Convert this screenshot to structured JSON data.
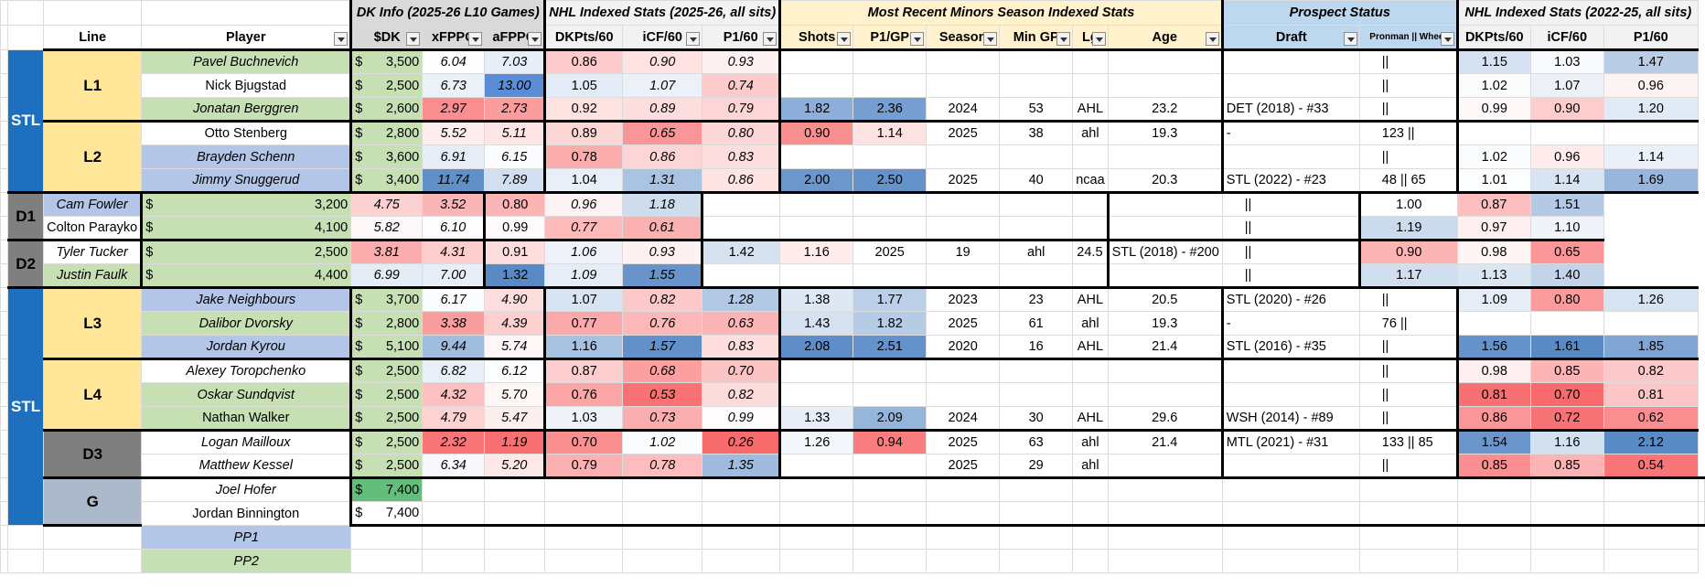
{
  "header": {
    "groups": {
      "dk": "DK Info (2025-26 L10 Games)",
      "nhl": "NHL Indexed Stats (2025-26, all sits)",
      "minors": "Most Recent Minors Season Indexed Stats",
      "prospect": "Prospect Status",
      "nhl2": "NHL Indexed Stats (2022-25, all sits)"
    },
    "columns": {
      "line": "Line",
      "player": "Player",
      "dk": "$DK",
      "xfppg": "xFPPG",
      "afppg": "aFPPG",
      "dkpts": "DKPts/60",
      "icf": "iCF/60",
      "p1": "P1/60",
      "shots": "Shots",
      "p1gp": "P1/GP",
      "season": "Season",
      "mingp": "Min GP",
      "lg": "Lg",
      "age": "Age",
      "draft": "Draft",
      "pronman": "Pronman || Wheel",
      "dkpts2": "DKPts/60",
      "icf2": "iCF/60",
      "p12": "P1/60"
    }
  },
  "team": "STL",
  "lines": {
    "L1": "L1",
    "L2": "L2",
    "D1": "D1",
    "D2": "D2",
    "L3": "L3",
    "L4": "L4",
    "D3": "D3",
    "G": "G"
  },
  "rows": [
    {
      "player": "Pavel Buchnevich",
      "dk": "3,500",
      "xfppg": "6.04",
      "afppg": "7.03",
      "dkpts": "0.86",
      "icf": "0.90",
      "p1": "0.93",
      "shots": "",
      "p1gp": "",
      "season": "",
      "mingp": "",
      "lg": "",
      "age": "",
      "draft": "",
      "pw": "||",
      "dkpts2": "1.15",
      "icf2": "1.03",
      "p12": "1.47"
    },
    {
      "player": "Nick Bjugstad",
      "dk": "2,500",
      "xfppg": "6.73",
      "afppg": "13.00",
      "dkpts": "1.05",
      "icf": "1.07",
      "p1": "0.74",
      "shots": "",
      "p1gp": "",
      "season": "",
      "mingp": "",
      "lg": "",
      "age": "",
      "draft": "",
      "pw": "||",
      "dkpts2": "1.02",
      "icf2": "1.07",
      "p12": "0.96"
    },
    {
      "player": "Jonatan Berggren",
      "dk": "2,600",
      "xfppg": "2.97",
      "afppg": "2.73",
      "dkpts": "0.92",
      "icf": "0.89",
      "p1": "0.79",
      "shots": "1.82",
      "p1gp": "2.36",
      "season": "2024",
      "mingp": "53",
      "lg": "AHL",
      "age": "23.2",
      "draft": "DET (2018) - #33",
      "pw": "||",
      "dkpts2": "0.99",
      "icf2": "0.90",
      "p12": "1.20"
    },
    {
      "player": "Otto Stenberg",
      "dk": "2,800",
      "xfppg": "5.52",
      "afppg": "5.11",
      "dkpts": "0.89",
      "icf": "0.65",
      "p1": "0.80",
      "shots": "0.90",
      "p1gp": "1.14",
      "season": "2025",
      "mingp": "38",
      "lg": "ahl",
      "age": "19.3",
      "draft": "-",
      "pw": "123 ||",
      "dkpts2": "",
      "icf2": "",
      "p12": ""
    },
    {
      "player": "Brayden Schenn",
      "dk": "3,600",
      "xfppg": "6.91",
      "afppg": "6.15",
      "dkpts": "0.78",
      "icf": "0.86",
      "p1": "0.83",
      "shots": "",
      "p1gp": "",
      "season": "",
      "mingp": "",
      "lg": "",
      "age": "",
      "draft": "",
      "pw": "||",
      "dkpts2": "1.02",
      "icf2": "0.96",
      "p12": "1.14"
    },
    {
      "player": "Jimmy Snuggerud",
      "dk": "3,400",
      "xfppg": "11.74",
      "afppg": "7.89",
      "dkpts": "1.04",
      "icf": "1.31",
      "p1": "0.86",
      "shots": "2.00",
      "p1gp": "2.50",
      "season": "2025",
      "mingp": "40",
      "lg": "ncaa",
      "age": "20.3",
      "draft": "STL (2022) - #23",
      "pw": "48 || 65",
      "dkpts2": "1.01",
      "icf2": "1.14",
      "p12": "1.69"
    },
    {
      "player": "Cam Fowler",
      "dk": "3,200",
      "xfppg": "4.75",
      "afppg": "3.52",
      "dkpts": "0.80",
      "icf": "0.96",
      "p1": "1.18",
      "shots": "",
      "p1gp": "",
      "season": "",
      "mingp": "",
      "lg": "",
      "age": "",
      "draft": "",
      "pw": "||",
      "dkpts2": "1.00",
      "icf2": "0.87",
      "p12": "1.51"
    },
    {
      "player": "Colton Parayko",
      "dk": "4,100",
      "xfppg": "5.82",
      "afppg": "6.10",
      "dkpts": "0.99",
      "icf": "0.77",
      "p1": "0.61",
      "shots": "",
      "p1gp": "",
      "season": "",
      "mingp": "",
      "lg": "",
      "age": "",
      "draft": "",
      "pw": "||",
      "dkpts2": "1.19",
      "icf2": "0.97",
      "p12": "1.10"
    },
    {
      "player": "Tyler Tucker",
      "dk": "2,500",
      "xfppg": "3.81",
      "afppg": "4.31",
      "dkpts": "0.91",
      "icf": "1.06",
      "p1": "0.93",
      "shots": "1.42",
      "p1gp": "1.16",
      "season": "2025",
      "mingp": "19",
      "lg": "ahl",
      "age": "24.5",
      "draft": "STL (2018) - #200",
      "pw": "||",
      "dkpts2": "0.90",
      "icf2": "0.98",
      "p12": "0.65"
    },
    {
      "player": "Justin Faulk",
      "dk": "4,400",
      "xfppg": "6.99",
      "afppg": "7.00",
      "dkpts": "1.32",
      "icf": "1.09",
      "p1": "1.55",
      "shots": "",
      "p1gp": "",
      "season": "",
      "mingp": "",
      "lg": "",
      "age": "",
      "draft": "",
      "pw": "||",
      "dkpts2": "1.17",
      "icf2": "1.13",
      "p12": "1.40"
    },
    {
      "player": "Jake Neighbours",
      "dk": "3,700",
      "xfppg": "6.17",
      "afppg": "4.90",
      "dkpts": "1.07",
      "icf": "0.82",
      "p1": "1.28",
      "shots": "1.38",
      "p1gp": "1.77",
      "season": "2023",
      "mingp": "23",
      "lg": "AHL",
      "age": "20.5",
      "draft": "STL (2020) - #26",
      "pw": "||",
      "dkpts2": "1.09",
      "icf2": "0.80",
      "p12": "1.26"
    },
    {
      "player": "Dalibor Dvorsky",
      "dk": "2,800",
      "xfppg": "3.38",
      "afppg": "4.39",
      "dkpts": "0.77",
      "icf": "0.76",
      "p1": "0.63",
      "shots": "1.43",
      "p1gp": "1.82",
      "season": "2025",
      "mingp": "61",
      "lg": "ahl",
      "age": "19.3",
      "draft": "-",
      "pw": "76 ||",
      "dkpts2": "",
      "icf2": "",
      "p12": ""
    },
    {
      "player": "Jordan Kyrou",
      "dk": "5,100",
      "xfppg": "9.44",
      "afppg": "5.74",
      "dkpts": "1.16",
      "icf": "1.57",
      "p1": "0.83",
      "shots": "2.08",
      "p1gp": "2.51",
      "season": "2020",
      "mingp": "16",
      "lg": "AHL",
      "age": "21.4",
      "draft": "STL (2016) - #35",
      "pw": "||",
      "dkpts2": "1.56",
      "icf2": "1.61",
      "p12": "1.85"
    },
    {
      "player": "Alexey Toropchenko",
      "dk": "2,500",
      "xfppg": "6.82",
      "afppg": "6.12",
      "dkpts": "0.87",
      "icf": "0.68",
      "p1": "0.70",
      "shots": "",
      "p1gp": "",
      "season": "",
      "mingp": "",
      "lg": "",
      "age": "",
      "draft": "",
      "pw": "||",
      "dkpts2": "0.98",
      "icf2": "0.85",
      "p12": "0.82"
    },
    {
      "player": "Oskar Sundqvist",
      "dk": "2,500",
      "xfppg": "4.32",
      "afppg": "5.70",
      "dkpts": "0.76",
      "icf": "0.53",
      "p1": "0.82",
      "shots": "",
      "p1gp": "",
      "season": "",
      "mingp": "",
      "lg": "",
      "age": "",
      "draft": "",
      "pw": "||",
      "dkpts2": "0.81",
      "icf2": "0.70",
      "p12": "0.81"
    },
    {
      "player": "Nathan Walker",
      "dk": "2,500",
      "xfppg": "4.79",
      "afppg": "5.47",
      "dkpts": "1.03",
      "icf": "0.73",
      "p1": "0.99",
      "shots": "1.33",
      "p1gp": "2.09",
      "season": "2024",
      "mingp": "30",
      "lg": "AHL",
      "age": "29.6",
      "draft": "WSH (2014) - #89",
      "pw": "||",
      "dkpts2": "0.86",
      "icf2": "0.72",
      "p12": "0.62"
    },
    {
      "player": "Logan Mailloux",
      "dk": "2,500",
      "xfppg": "2.32",
      "afppg": "1.19",
      "dkpts": "0.70",
      "icf": "1.02",
      "p1": "0.26",
      "shots": "1.26",
      "p1gp": "0.94",
      "season": "2025",
      "mingp": "63",
      "lg": "ahl",
      "age": "21.4",
      "draft": "MTL (2021) - #31",
      "pw": "133 || 85",
      "dkpts2": "1.54",
      "icf2": "1.16",
      "p12": "2.12"
    },
    {
      "player": "Matthew Kessel",
      "dk": "2,500",
      "xfppg": "6.34",
      "afppg": "5.20",
      "dkpts": "0.79",
      "icf": "0.78",
      "p1": "1.35",
      "shots": "",
      "p1gp": "",
      "season": "2025",
      "mingp": "29",
      "lg": "ahl",
      "age": "",
      "draft": "",
      "pw": "||",
      "dkpts2": "0.85",
      "icf2": "0.85",
      "p12": "0.54"
    },
    {
      "player": "Joel Hofer",
      "dk": "7,400"
    },
    {
      "player": "Jordan Binnington",
      "dk": "7,400"
    }
  ],
  "pp": [
    "PP1",
    "PP2"
  ],
  "currency": "$",
  "colors": {
    "team": "#1f6fbf",
    "line": "#ffe699",
    "defense": "#7f7f7f",
    "goalie": "#acb9ca",
    "green": "#c6e0b4",
    "blue": "#b4c6e7",
    "red": "#f8696b",
    "darkblue": "#5b8dd6"
  }
}
